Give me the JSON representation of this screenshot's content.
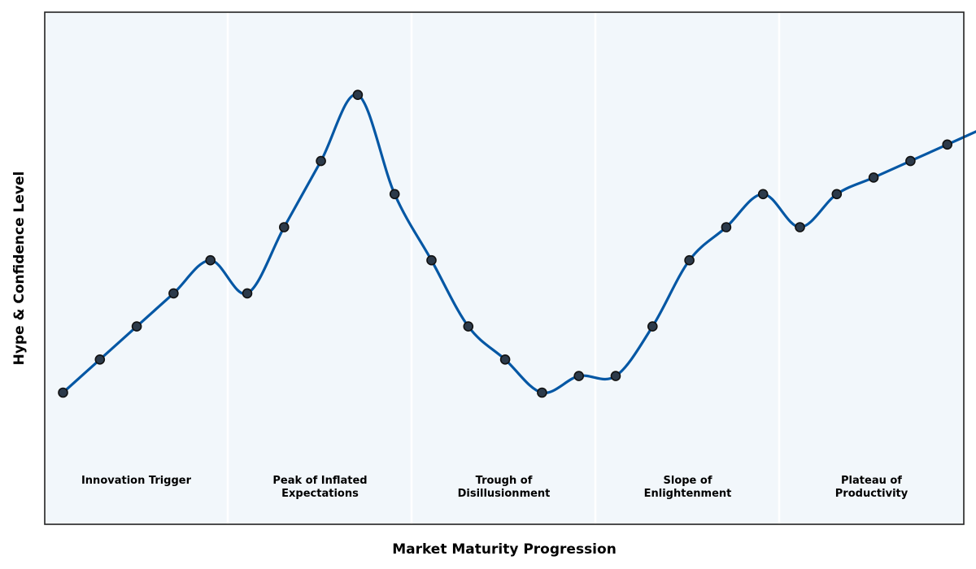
{
  "chart_data": {
    "type": "line",
    "title": "",
    "xlabel": "Market Maturity Progression",
    "ylabel": "Hype & Confidence Level",
    "ylim": [
      0,
      100
    ],
    "grid": false,
    "x": [
      0,
      1,
      2,
      3,
      4,
      5,
      6,
      7,
      8,
      9,
      10,
      11,
      12,
      13,
      14,
      15,
      16,
      17,
      18,
      19,
      20,
      21,
      22,
      23,
      24,
      25
    ],
    "values": [
      40,
      42,
      44,
      46,
      48,
      46,
      50,
      54,
      58,
      52,
      48,
      44,
      42,
      40,
      41,
      41,
      44,
      48,
      50,
      52,
      50,
      52,
      53,
      54,
      55,
      56
    ],
    "phases": [
      {
        "label_lines": [
          "Innovation Trigger"
        ]
      },
      {
        "label_lines": [
          "Peak of Inflated",
          "Expectations"
        ]
      },
      {
        "label_lines": [
          "Trough of",
          "Disillusionment"
        ]
      },
      {
        "label_lines": [
          "Slope of",
          "Enlightenment"
        ]
      },
      {
        "label_lines": [
          "Plateau of",
          "Productivity"
        ]
      }
    ],
    "colors": {
      "line": "#0457a4",
      "marker_fill": "#2c3a4a",
      "marker_edge": "#111111",
      "background": "#f2f7fb",
      "divider": "#ffffff",
      "frame": "#222222"
    }
  }
}
